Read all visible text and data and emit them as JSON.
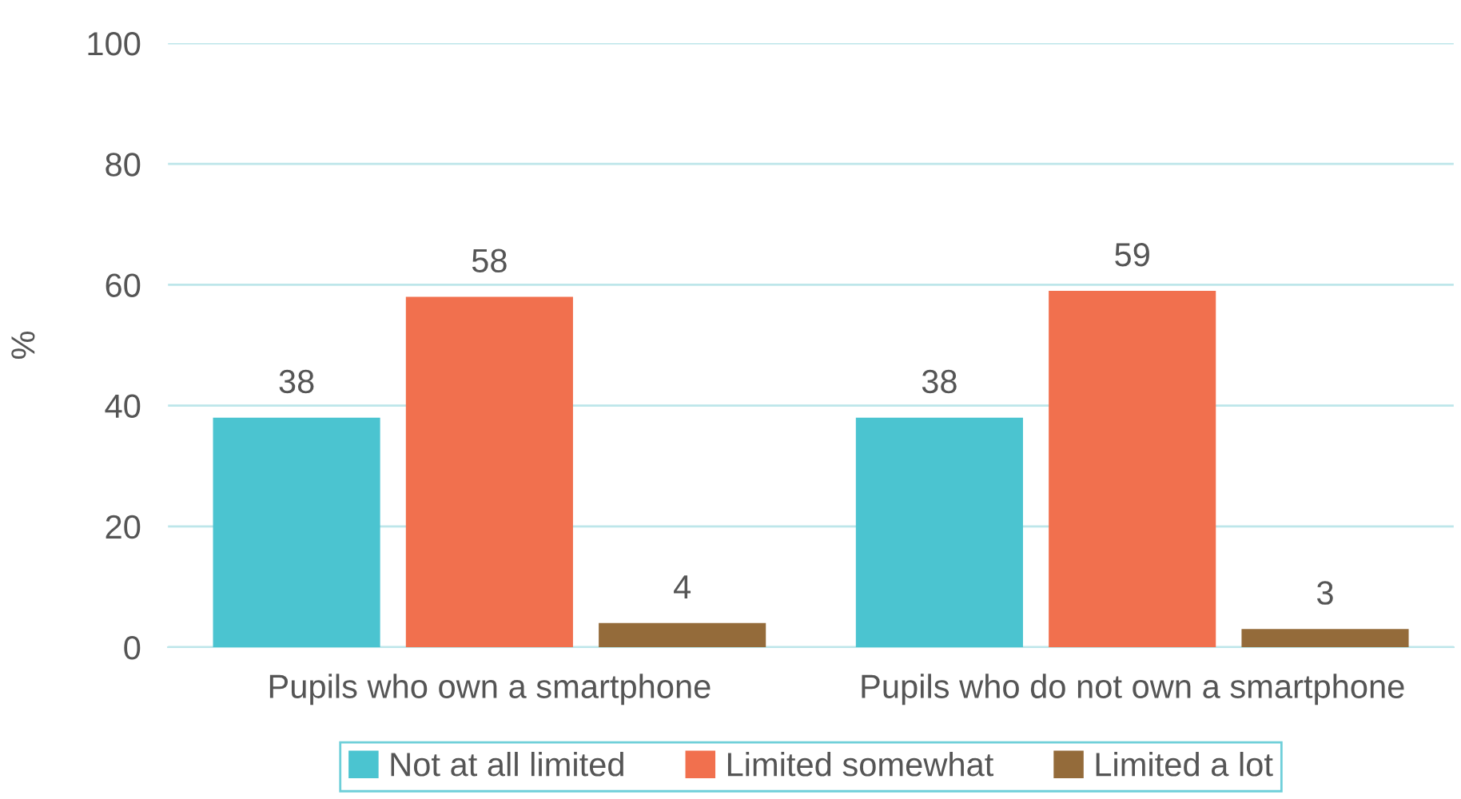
{
  "chart_data": {
    "type": "bar",
    "ylabel": "%",
    "categories": [
      "Pupils who own a smartphone",
      "Pupils who do not own a smartphone"
    ],
    "series": [
      {
        "name": "Not at all limited",
        "color": "#4bc4d0",
        "values": [
          38,
          38
        ]
      },
      {
        "name": "Limited somewhat",
        "color": "#f1704e",
        "values": [
          58,
          59
        ]
      },
      {
        "name": "Limited a lot",
        "color": "#946b3a",
        "values": [
          4,
          3
        ]
      }
    ],
    "ylim": [
      0,
      100
    ],
    "yticks": [
      0,
      20,
      40,
      60,
      80,
      100
    ],
    "grid": "y",
    "legend": "bottom",
    "data_labels": true
  }
}
